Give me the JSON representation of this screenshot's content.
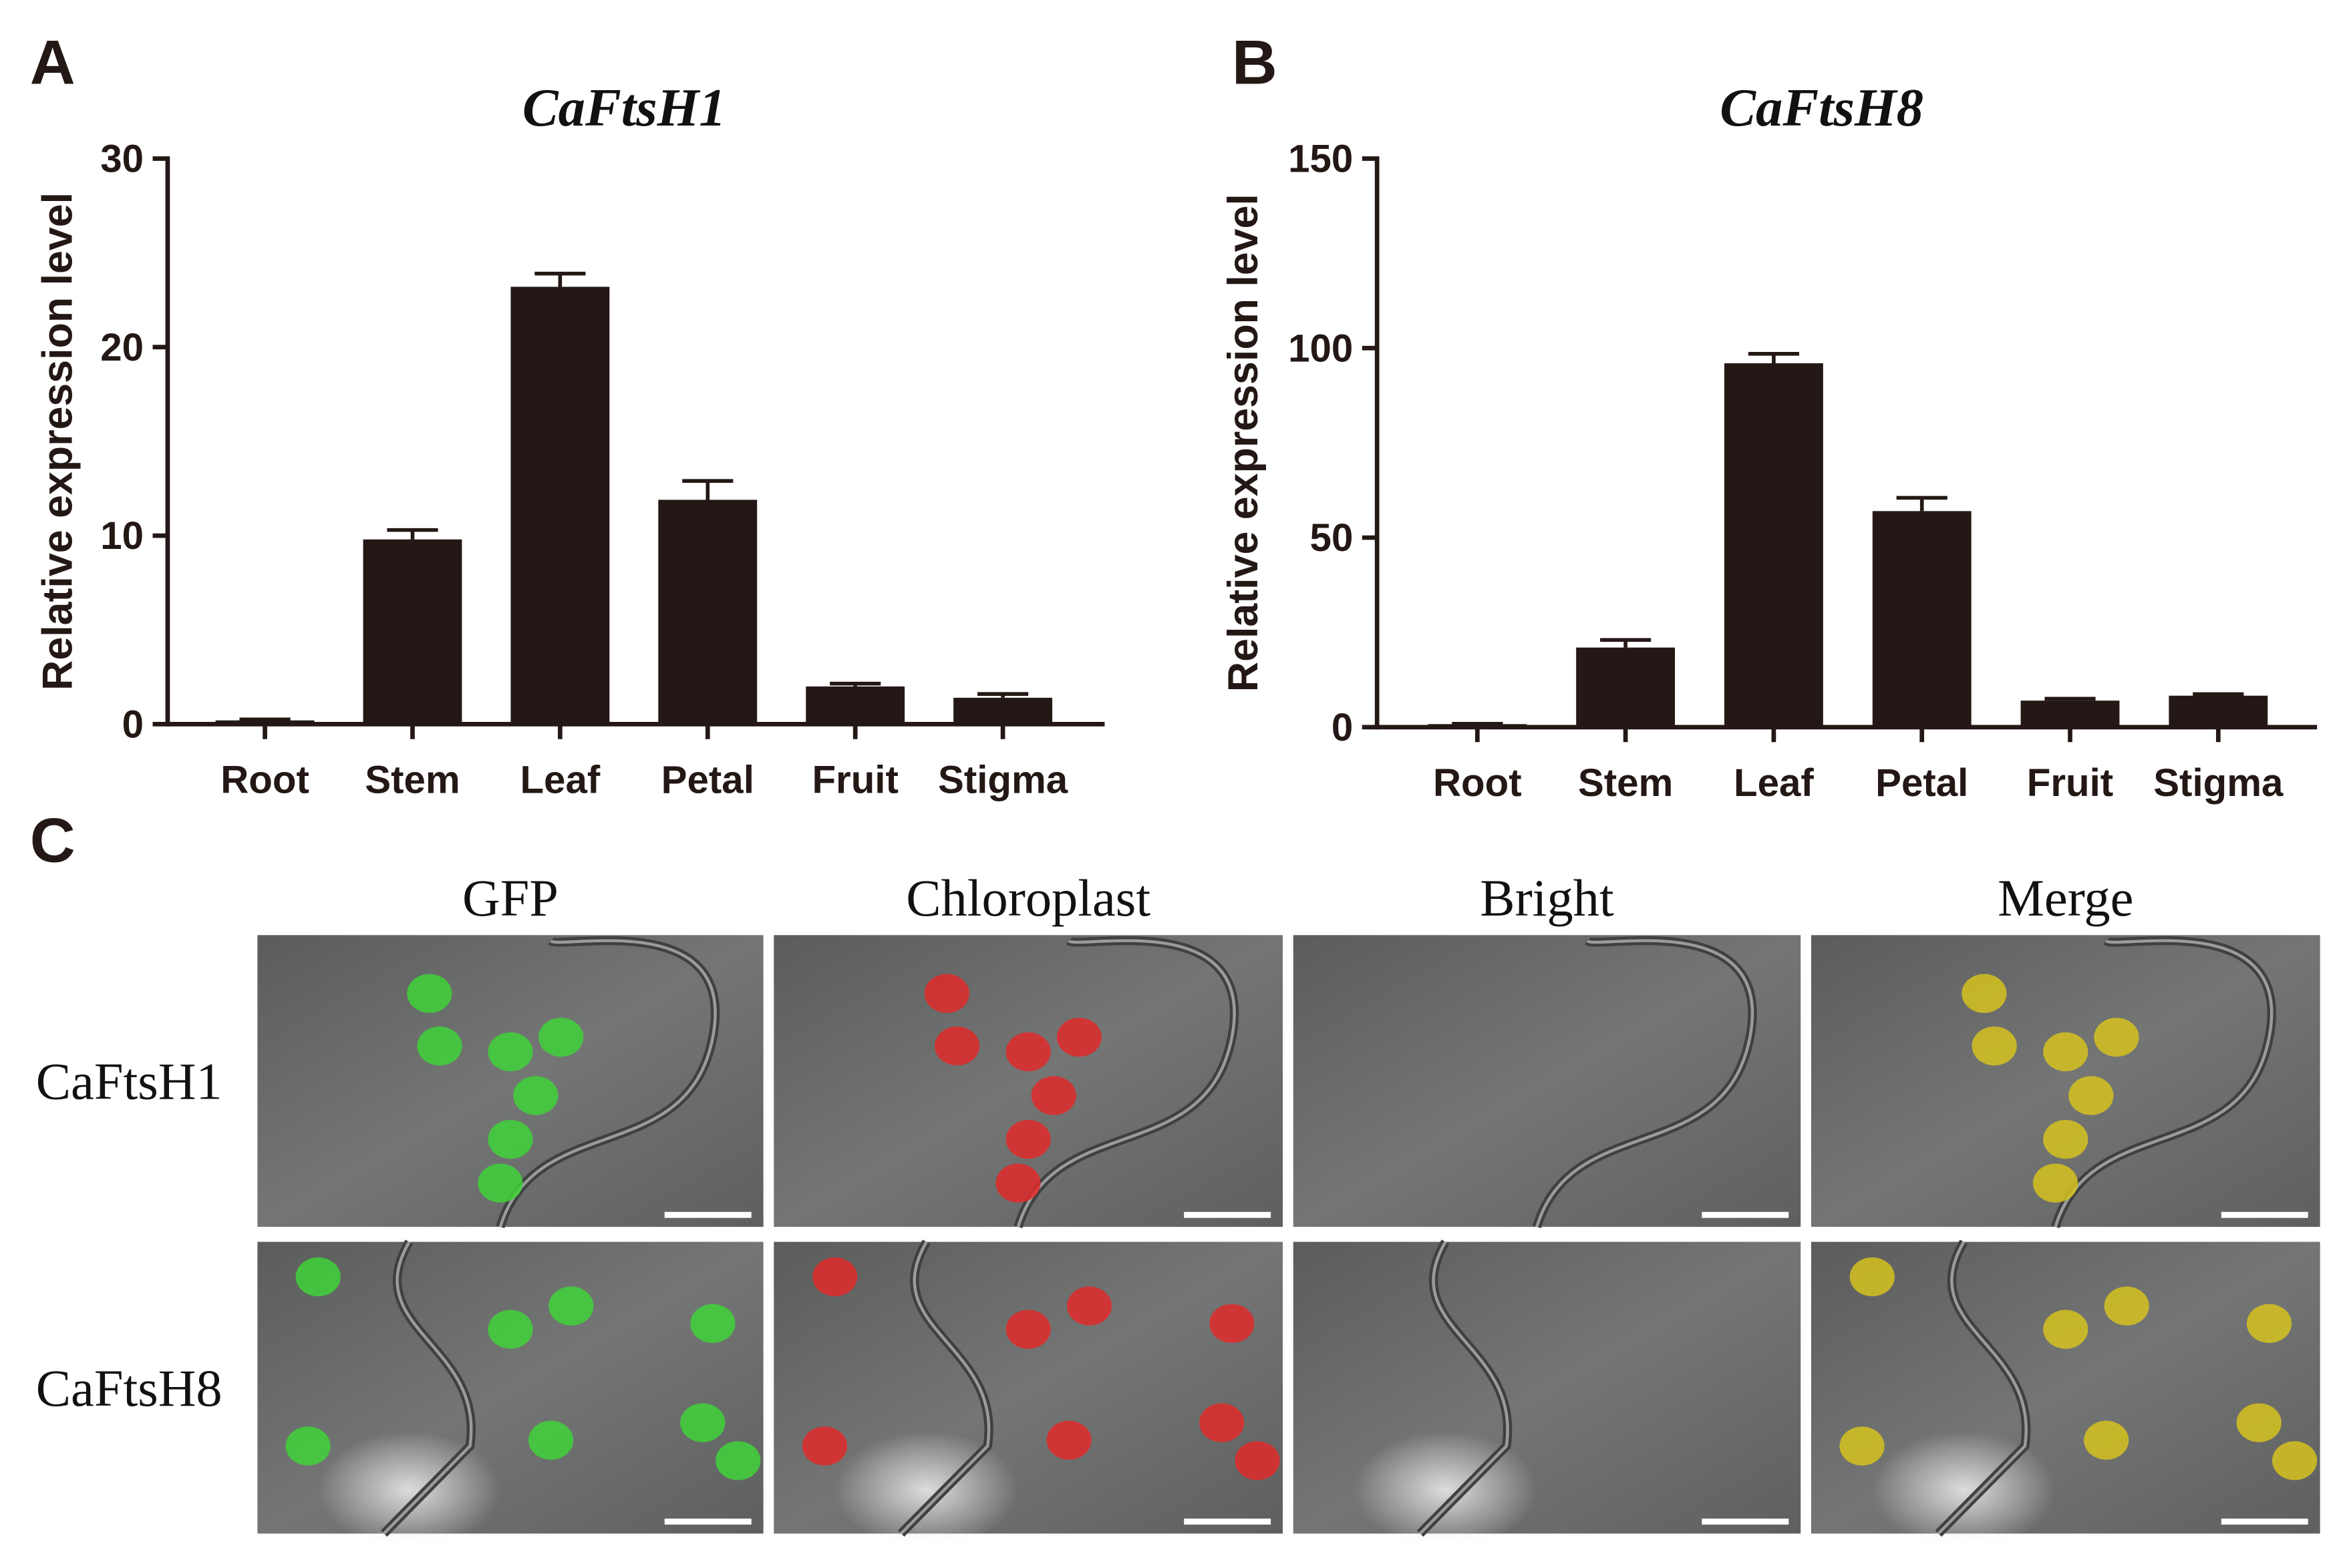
{
  "panel_labels": [
    "A",
    "B",
    "C"
  ],
  "chart_data": [
    {
      "type": "bar",
      "title": "CaFtsH1",
      "ylabel": "Relative expression level",
      "categories": [
        "Root",
        "Stem",
        "Leaf",
        "Petal",
        "Fruit",
        "Stigma"
      ],
      "values": [
        0.2,
        9.8,
        23.2,
        11.9,
        2.0,
        1.4
      ],
      "errors": [
        0.05,
        0.5,
        0.7,
        1.0,
        0.15,
        0.2
      ],
      "color": "#231815",
      "ylim": [
        0,
        30
      ],
      "yticks": [
        0,
        10,
        20,
        30
      ]
    },
    {
      "type": "bar",
      "title": "CaFtsH8",
      "ylabel": "Relative expression level",
      "categories": [
        "Root",
        "Stem",
        "Leaf",
        "Petal",
        "Fruit",
        "Stigma"
      ],
      "values": [
        0.8,
        21,
        96,
        57,
        7,
        8.3
      ],
      "errors": [
        0.1,
        2,
        2.5,
        3.5,
        0.5,
        0.4
      ],
      "color": "#231815",
      "ylim": [
        0,
        150
      ],
      "yticks": [
        0,
        50,
        100,
        150
      ]
    }
  ],
  "microscopy": {
    "columns": [
      "GFP",
      "Chloroplast",
      "Bright",
      "Merge"
    ],
    "rows": [
      "CaFtsH1",
      "CaFtsH8"
    ]
  }
}
